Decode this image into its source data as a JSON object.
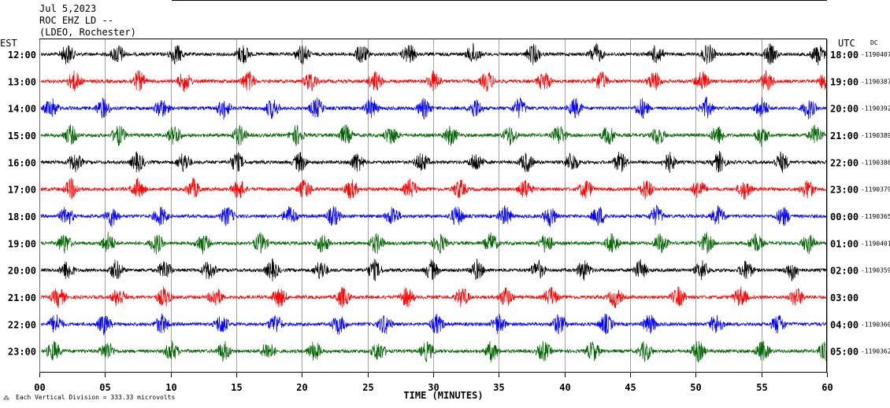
{
  "header": {
    "date": "Jul 5,2023",
    "station": "ROC EHZ LD --",
    "network": "(LDEO, Rochester)"
  },
  "labels": {
    "left_zone": "EST",
    "right_zone": "UTC",
    "dc": "DC",
    "xlabel": "TIME (MINUTES)",
    "scale_note": "Each Vertical Division = 333.33 microvolts"
  },
  "chart_data": {
    "type": "line",
    "title": "Jul 5,2023 ROC EHZ LD -- (LDEO, Rochester)",
    "xlabel": "TIME (MINUTES)",
    "ylabel": "",
    "xlim": [
      0,
      60
    ],
    "x_ticks": [
      "00",
      "05",
      "10",
      "15",
      "20",
      "25",
      "30",
      "35",
      "40",
      "45",
      "50",
      "55",
      "60"
    ],
    "grid": true,
    "colors": [
      "#000000",
      "#ff0000",
      "#0000ff",
      "#006400"
    ],
    "series": [
      {
        "est": "12:00",
        "utc": "18:00",
        "dc": "-1190407",
        "color": "#000000"
      },
      {
        "est": "13:00",
        "utc": "19:00",
        "dc": "-1190387",
        "color": "#ff0000"
      },
      {
        "est": "14:00",
        "utc": "20:00",
        "dc": "-1190392",
        "color": "#0000ff"
      },
      {
        "est": "15:00",
        "utc": "21:00",
        "dc": "-1190389",
        "color": "#006400"
      },
      {
        "est": "16:00",
        "utc": "22:00",
        "dc": "-1190386",
        "color": "#000000"
      },
      {
        "est": "17:00",
        "utc": "23:00",
        "dc": "-1190379",
        "color": "#ff0000"
      },
      {
        "est": "18:00",
        "utc": "00:00",
        "dc": "-1190365",
        "color": "#0000ff"
      },
      {
        "est": "19:00",
        "utc": "01:00",
        "dc": "-1190401",
        "color": "#006400"
      },
      {
        "est": "20:00",
        "utc": "02:00",
        "dc": "-1190359",
        "color": "#000000"
      },
      {
        "est": "21:00",
        "utc": "03:00",
        "dc": "",
        "color": "#ff0000"
      },
      {
        "est": "22:00",
        "utc": "04:00",
        "dc": "-1190360",
        "color": "#0000ff"
      },
      {
        "est": "23:00",
        "utc": "05:00",
        "dc": "-1190362",
        "color": "#006400"
      }
    ]
  }
}
